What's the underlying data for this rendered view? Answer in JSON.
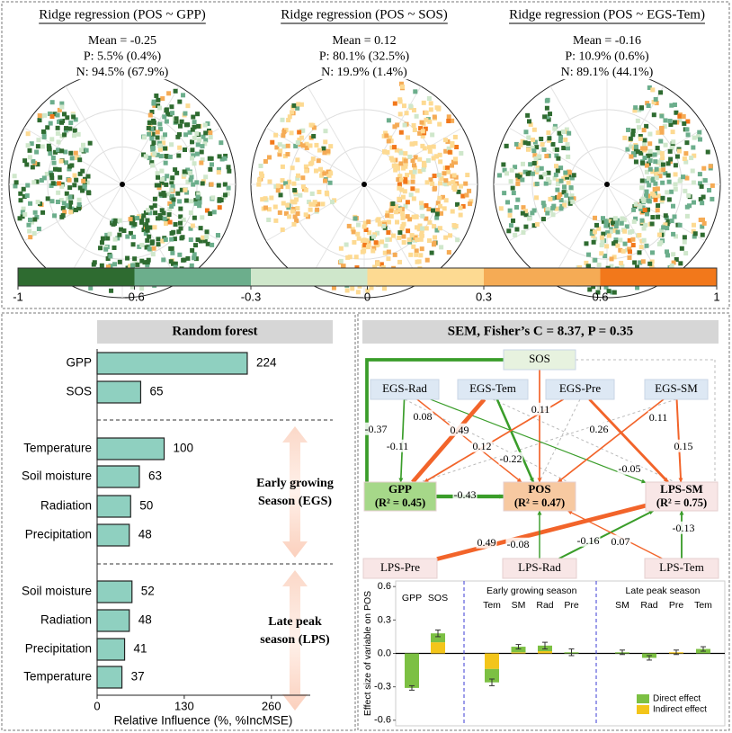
{
  "maps": [
    {
      "title": "Ridge regression  (POS ~ GPP)",
      "stats": [
        "Mean = -0.25",
        "P: 5.5% (0.4%)",
        "N: 94.5% (67.9%)"
      ]
    },
    {
      "title": "Ridge regression (POS ~ SOS)",
      "stats": [
        "Mean = 0.12",
        "P: 80.1% (32.5%)",
        "N: 19.9% (1.4%)"
      ]
    },
    {
      "title": "Ridge regression (POS ~ EGS-Tem)",
      "stats": [
        "Mean = -0.16",
        "P: 10.9% (0.6%)",
        "N: 89.1% (44.1%)"
      ]
    }
  ],
  "colorbar": {
    "ticks": [
      -1,
      -0.6,
      -0.3,
      0,
      0.3,
      0.6,
      1
    ],
    "colors": [
      "#2e6b30",
      "#6cae8c",
      "#cfe7cb",
      "#fdda92",
      "#f5ab55",
      "#f2781b"
    ]
  },
  "random_forest": {
    "type": "bar",
    "title": "Random forest",
    "color": "#8fd0c0",
    "groups": [
      {
        "categories": [
          "GPP",
          "SOS"
        ],
        "values": [
          224,
          65
        ]
      },
      {
        "label": [
          "Early growing",
          "Season (EGS)"
        ],
        "categories": [
          "Temperature",
          "Soil moisture",
          "Radiation",
          "Precipitation"
        ],
        "values": [
          100,
          63,
          50,
          48
        ]
      },
      {
        "label": [
          "Late peak",
          "season (LPS)"
        ],
        "categories": [
          "Soil moisture",
          "Radiation",
          "Precipitation",
          "Temperature"
        ],
        "values": [
          52,
          48,
          41,
          37
        ]
      }
    ],
    "xlabel": "Relative Influence (%, %IncMSE)",
    "xlim": [
      0,
      318
    ],
    "xticks": [
      0,
      130,
      260
    ]
  },
  "sem": {
    "title": "SEM, Fisher’s C = 8.37, P = 0.35",
    "nodes": [
      {
        "label": "SOS"
      },
      {
        "label": "EGS-Rad"
      },
      {
        "label": "EGS-Tem"
      },
      {
        "label": "EGS-Pre"
      },
      {
        "label": "EGS-SM"
      },
      {
        "label": "GPP",
        "r2": "(R² = 0.45)"
      },
      {
        "label": "POS",
        "r2": "(R² = 0.47)"
      },
      {
        "label": "LPS-SM",
        "r2": "(R² = 0.75)"
      },
      {
        "label": "LPS-Pre"
      },
      {
        "label": "LPS-Rad"
      },
      {
        "label": "LPS-Tem"
      }
    ],
    "edges": [
      {
        "from": "SOS",
        "to": "GPP",
        "value": -0.37
      },
      {
        "from": "SOS",
        "to": "POS",
        "value": 0.11
      },
      {
        "from": "EGS-Rad",
        "to": "GPP",
        "value": -0.11
      },
      {
        "from": "EGS-Rad",
        "to": "POS",
        "value": 0.08
      },
      {
        "from": "EGS-Rad",
        "to": "LPS-SM",
        "value": -0.05
      },
      {
        "from": "EGS-Tem",
        "to": "GPP",
        "value": 0.49
      },
      {
        "from": "EGS-Tem",
        "to": "POS",
        "value": -0.22
      },
      {
        "from": "EGS-Pre",
        "to": "GPP",
        "value": 0.12
      },
      {
        "from": "EGS-Pre",
        "to": "LPS-SM",
        "value": 0.26
      },
      {
        "from": "EGS-SM",
        "to": "POS",
        "value": 0.11
      },
      {
        "from": "EGS-SM",
        "to": "LPS-SM",
        "value": 0.15
      },
      {
        "from": "GPP",
        "to": "POS",
        "value": -0.43
      },
      {
        "from": "LPS-Pre",
        "to": "LPS-SM",
        "value": 0.49
      },
      {
        "from": "LPS-Rad",
        "to": "POS",
        "value": -0.08
      },
      {
        "from": "LPS-Rad",
        "to": "LPS-SM",
        "value": -0.16
      },
      {
        "from": "LPS-Tem",
        "to": "POS",
        "value": 0.07
      },
      {
        "from": "LPS-Tem",
        "to": "LPS-SM",
        "value": -0.13
      }
    ]
  },
  "effects": {
    "type": "bar",
    "stacked": true,
    "groups": [
      {
        "categories": [
          "GPP",
          "SOS"
        ]
      },
      {
        "label": "Early growing season",
        "categories": [
          "Tem",
          "SM",
          "Rad",
          "Pre"
        ]
      },
      {
        "label": "Late peak season",
        "categories": [
          "SM",
          "Rad",
          "Pre",
          "Tem"
        ]
      }
    ],
    "series": [
      {
        "name": "Indirect effect",
        "color": "#f3c51a",
        "values": [
          0,
          0.1,
          -0.14,
          0.01,
          0.02,
          0,
          0,
          0,
          0.01,
          0
        ]
      },
      {
        "name": "Direct effect",
        "color": "#7cc043",
        "values": [
          -0.31,
          0.08,
          -0.12,
          0.05,
          0.05,
          0.01,
          0.01,
          -0.04,
          0,
          0.04
        ]
      }
    ],
    "errors": [
      0.02,
      0.03,
      0.03,
      0.02,
      0.03,
      0.03,
      0.02,
      0.02,
      0.02,
      0.02
    ],
    "ylabel": "Effect size of variable on POS",
    "ylim": [
      -0.65,
      0.65
    ],
    "yticks": [
      -0.6,
      -0.3,
      {
        "value": 0,
        "label": "0.0"
      },
      0.3,
      0.6
    ],
    "legend": "bottom-right"
  }
}
